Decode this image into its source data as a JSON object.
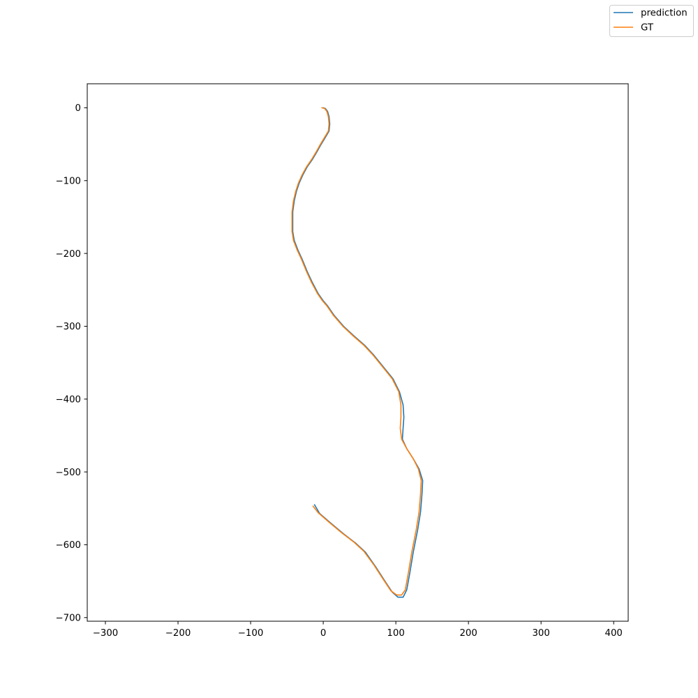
{
  "chart_data": {
    "type": "line",
    "title": "",
    "xlabel": "",
    "ylabel": "",
    "xlim": [
      -325,
      420
    ],
    "ylim": [
      -705,
      33
    ],
    "x_ticks": [
      -300,
      -200,
      -100,
      0,
      100,
      200,
      300,
      400
    ],
    "y_ticks": [
      0,
      -100,
      -200,
      -300,
      -400,
      -500,
      -600,
      -700
    ],
    "x_tick_labels": [
      "−300",
      "−200",
      "−100",
      "0",
      "100",
      "200",
      "300",
      "400"
    ],
    "y_tick_labels": [
      "0",
      "−100",
      "−200",
      "−300",
      "−400",
      "−500",
      "−600",
      "−700"
    ],
    "grid": false,
    "legend_position": "top-right (figure)",
    "series": [
      {
        "name": "prediction",
        "color": "#1f77b4",
        "points": [
          [
            0,
            0
          ],
          [
            3,
            -1
          ],
          [
            6,
            -5
          ],
          [
            8,
            -12
          ],
          [
            9,
            -22
          ],
          [
            8,
            -32
          ],
          [
            2,
            -42
          ],
          [
            -4,
            -52
          ],
          [
            -9,
            -61
          ],
          [
            -15,
            -71
          ],
          [
            -22,
            -81
          ],
          [
            -28,
            -92
          ],
          [
            -33,
            -103
          ],
          [
            -37,
            -115
          ],
          [
            -40,
            -128
          ],
          [
            -42,
            -143
          ],
          [
            -42,
            -157
          ],
          [
            -42,
            -170
          ],
          [
            -40,
            -182
          ],
          [
            -35,
            -195
          ],
          [
            -29,
            -208
          ],
          [
            -22,
            -225
          ],
          [
            -15,
            -240
          ],
          [
            -7,
            -255
          ],
          [
            0,
            -265
          ],
          [
            6,
            -272
          ],
          [
            15,
            -285
          ],
          [
            28,
            -300
          ],
          [
            42,
            -313
          ],
          [
            57,
            -326
          ],
          [
            70,
            -340
          ],
          [
            83,
            -356
          ],
          [
            96,
            -372
          ],
          [
            105,
            -390
          ],
          [
            110,
            -408
          ],
          [
            111,
            -425
          ],
          [
            110,
            -440
          ],
          [
            109,
            -455
          ],
          [
            115,
            -468
          ],
          [
            124,
            -482
          ],
          [
            132,
            -496
          ],
          [
            137,
            -512
          ],
          [
            136,
            -530
          ],
          [
            134,
            -555
          ],
          [
            130,
            -580
          ],
          [
            124,
            -610
          ],
          [
            119,
            -640
          ],
          [
            115,
            -662
          ],
          [
            110,
            -672
          ],
          [
            103,
            -672
          ],
          [
            95,
            -665
          ],
          [
            85,
            -650
          ],
          [
            72,
            -630
          ],
          [
            58,
            -610
          ],
          [
            45,
            -598
          ],
          [
            28,
            -585
          ],
          [
            10,
            -570
          ],
          [
            -5,
            -557
          ],
          [
            -12,
            -545
          ]
        ]
      },
      {
        "name": "GT",
        "color": "#ff7f0e",
        "points": [
          [
            -2,
            0
          ],
          [
            2,
            -1
          ],
          [
            5,
            -5
          ],
          [
            7,
            -12
          ],
          [
            8,
            -22
          ],
          [
            7,
            -32
          ],
          [
            1,
            -42
          ],
          [
            -5,
            -52
          ],
          [
            -10,
            -61
          ],
          [
            -16,
            -71
          ],
          [
            -23,
            -81
          ],
          [
            -29,
            -92
          ],
          [
            -34,
            -103
          ],
          [
            -38,
            -115
          ],
          [
            -41,
            -128
          ],
          [
            -43,
            -143
          ],
          [
            -43,
            -157
          ],
          [
            -43,
            -170
          ],
          [
            -41,
            -182
          ],
          [
            -36,
            -195
          ],
          [
            -30,
            -208
          ],
          [
            -23,
            -225
          ],
          [
            -16,
            -240
          ],
          [
            -8,
            -255
          ],
          [
            -1,
            -265
          ],
          [
            5,
            -272
          ],
          [
            14,
            -285
          ],
          [
            27,
            -300
          ],
          [
            41,
            -313
          ],
          [
            56,
            -326
          ],
          [
            69,
            -340
          ],
          [
            82,
            -356
          ],
          [
            95,
            -372
          ],
          [
            104,
            -390
          ],
          [
            107,
            -408
          ],
          [
            107,
            -425
          ],
          [
            106,
            -440
          ],
          [
            108,
            -455
          ],
          [
            115,
            -468
          ],
          [
            124,
            -482
          ],
          [
            131,
            -496
          ],
          [
            135,
            -512
          ],
          [
            134,
            -530
          ],
          [
            132,
            -555
          ],
          [
            128,
            -580
          ],
          [
            122,
            -610
          ],
          [
            117,
            -640
          ],
          [
            113,
            -662
          ],
          [
            108,
            -669
          ],
          [
            101,
            -669
          ],
          [
            93,
            -663
          ],
          [
            83,
            -648
          ],
          [
            70,
            -628
          ],
          [
            56,
            -609
          ],
          [
            43,
            -597
          ],
          [
            26,
            -584
          ],
          [
            8,
            -569
          ],
          [
            -7,
            -556
          ],
          [
            -14,
            -547
          ]
        ]
      }
    ]
  }
}
